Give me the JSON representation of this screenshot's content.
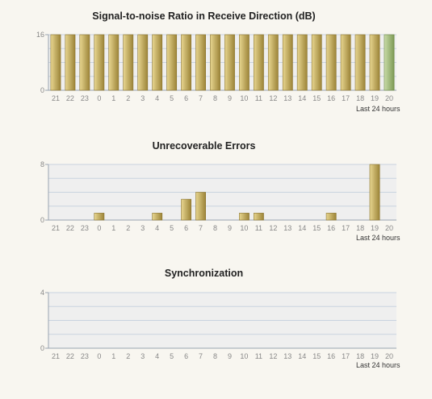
{
  "colors": {
    "page_bg": "#f8f6f0",
    "plot_bg": "#efefef",
    "gridline": "#c9d3df",
    "axis": "#9aa4b0",
    "bar_gold_light": "#e8d690",
    "bar_gold_dark": "#9c8438",
    "bar_green_light": "#c9dca8",
    "bar_green_dark": "#7d9a55"
  },
  "chart_data": [
    {
      "type": "bar",
      "title": "Signal-to-noise Ratio in Receive Direction (dB)",
      "xlabel": "Last 24 hours",
      "ylabel": "",
      "ylim": [
        0,
        16
      ],
      "yticks": [
        "0",
        "16"
      ],
      "grid": true,
      "categories": [
        "21",
        "22",
        "23",
        "0",
        "1",
        "2",
        "3",
        "4",
        "5",
        "6",
        "7",
        "8",
        "9",
        "10",
        "11",
        "12",
        "13",
        "14",
        "15",
        "16",
        "17",
        "18",
        "19",
        "20"
      ],
      "values": [
        16,
        16,
        16,
        16,
        16,
        16,
        16,
        16,
        16,
        16,
        16,
        16,
        16,
        16,
        16,
        16,
        16,
        16,
        16,
        16,
        16,
        16,
        16,
        16
      ],
      "highlight_index": 23
    },
    {
      "type": "bar",
      "title": "Unrecoverable Errors",
      "xlabel": "Last 24 hours",
      "ylabel": "",
      "ylim": [
        0,
        8
      ],
      "yticks": [
        "0",
        "8"
      ],
      "grid": true,
      "categories": [
        "21",
        "22",
        "23",
        "0",
        "1",
        "2",
        "3",
        "4",
        "5",
        "6",
        "7",
        "8",
        "9",
        "10",
        "11",
        "12",
        "13",
        "14",
        "15",
        "16",
        "17",
        "18",
        "19",
        "20"
      ],
      "values": [
        0,
        0,
        0,
        1,
        0,
        0,
        0,
        1,
        0,
        3,
        4,
        0,
        0,
        1,
        1,
        0,
        0,
        0,
        0,
        1,
        0,
        0,
        8,
        0
      ],
      "highlight_index": -1
    },
    {
      "type": "bar",
      "title": "Synchronization",
      "xlabel": "Last 24 hours",
      "ylabel": "",
      "ylim": [
        0,
        4
      ],
      "yticks": [
        "0",
        "4"
      ],
      "grid": true,
      "categories": [
        "21",
        "22",
        "23",
        "0",
        "1",
        "2",
        "3",
        "4",
        "5",
        "6",
        "7",
        "8",
        "9",
        "10",
        "11",
        "12",
        "13",
        "14",
        "15",
        "16",
        "17",
        "18",
        "19",
        "20"
      ],
      "values": [
        0,
        0,
        0,
        0,
        0,
        0,
        0,
        0,
        0,
        0,
        0,
        0,
        0,
        0,
        0,
        0,
        0,
        0,
        0,
        0,
        0,
        0,
        0,
        0
      ],
      "highlight_index": -1
    }
  ]
}
